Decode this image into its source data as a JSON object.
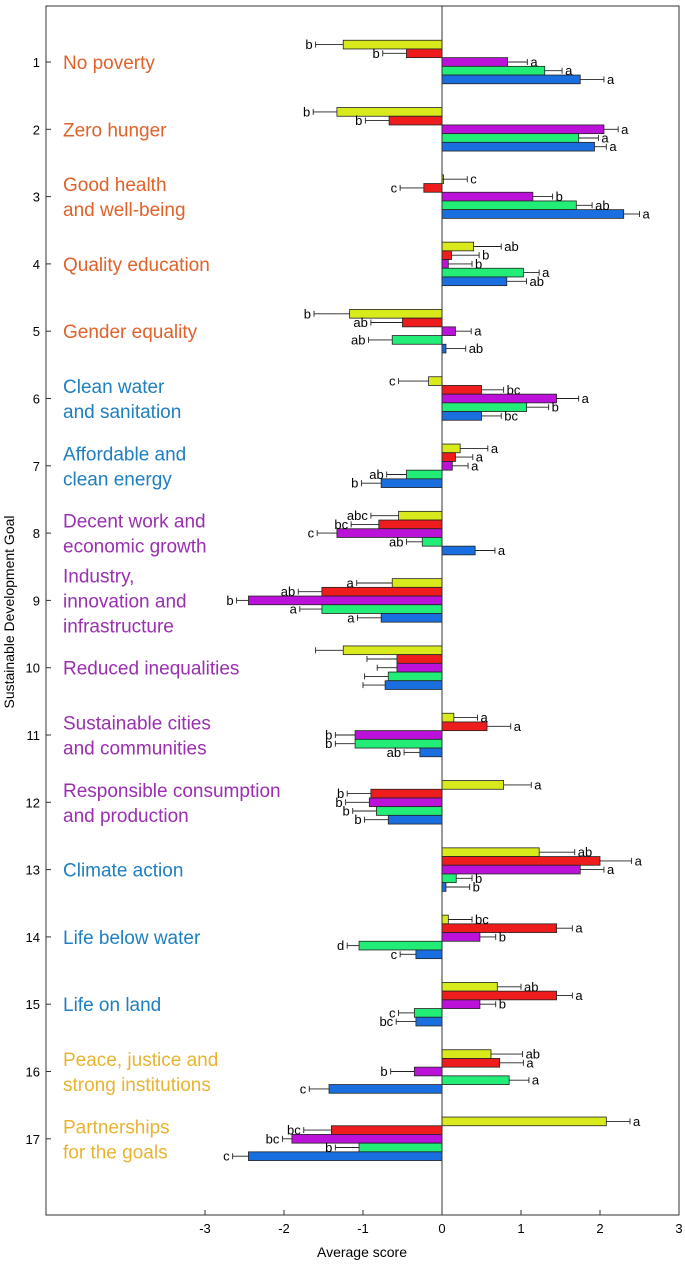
{
  "chart_data": {
    "type": "bar",
    "orientation": "horizontal",
    "xlabel": "Average score",
    "ylabel": "Sustainable Development Goal",
    "xlim": [
      -5.1,
      3
    ],
    "xticks": [
      -3,
      -2,
      -1,
      0,
      1,
      2,
      3
    ],
    "ylim": [
      0.25,
      18
    ],
    "grid": false,
    "series_colors": [
      "#d9ea1c",
      "#ee1c1c",
      "#bb11d9",
      "#22ee77",
      "#1a6fe0"
    ],
    "goals": [
      {
        "number": "1",
        "label_lines": [
          "No poverty"
        ],
        "label_color": "#e0622a",
        "bars": [
          {
            "value": -1.25,
            "err": 0.35,
            "sig": "b"
          },
          {
            "value": -0.45,
            "err": 0.3,
            "sig": "b"
          },
          {
            "value": 0.83,
            "err": 0.25,
            "sig": "a"
          },
          {
            "value": 1.3,
            "err": 0.22,
            "sig": "a"
          },
          {
            "value": 1.75,
            "err": 0.3,
            "sig": "a"
          }
        ]
      },
      {
        "number": "2",
        "label_lines": [
          "Zero hunger"
        ],
        "label_color": "#e0622a",
        "bars": [
          {
            "value": -1.33,
            "err": 0.3,
            "sig": "b"
          },
          {
            "value": -0.67,
            "err": 0.3,
            "sig": "b"
          },
          {
            "value": 2.05,
            "err": 0.18,
            "sig": "a"
          },
          {
            "value": 1.73,
            "err": 0.25,
            "sig": "a"
          },
          {
            "value": 1.93,
            "err": 0.15,
            "sig": "a"
          }
        ]
      },
      {
        "number": "3",
        "label_lines": [
          "Good health",
          "and well-being"
        ],
        "label_color": "#e0622a",
        "bars": [
          {
            "value": 0.0,
            "err": 0.32,
            "sig": "c"
          },
          {
            "value": -0.23,
            "err": 0.3,
            "sig": "c"
          },
          {
            "value": 1.15,
            "err": 0.25,
            "sig": "b"
          },
          {
            "value": 1.7,
            "err": 0.2,
            "sig": "ab"
          },
          {
            "value": 2.3,
            "err": 0.2,
            "sig": "a"
          }
        ]
      },
      {
        "number": "4",
        "label_lines": [
          "Quality education"
        ],
        "label_color": "#e0622a",
        "bars": [
          {
            "value": 0.4,
            "err": 0.35,
            "sig": "ab"
          },
          {
            "value": 0.12,
            "err": 0.35,
            "sig": "b"
          },
          {
            "value": 0.08,
            "err": 0.3,
            "sig": "b"
          },
          {
            "value": 1.03,
            "err": 0.2,
            "sig": "a"
          },
          {
            "value": 0.82,
            "err": 0.25,
            "sig": "ab"
          }
        ]
      },
      {
        "number": "5",
        "label_lines": [
          "Gender equality"
        ],
        "label_color": "#e0622a",
        "bars": [
          {
            "value": -1.17,
            "err": 0.45,
            "sig": "b"
          },
          {
            "value": -0.5,
            "err": 0.4,
            "sig": "ab"
          },
          {
            "value": 0.17,
            "err": 0.2,
            "sig": "a"
          },
          {
            "value": -0.63,
            "err": 0.3,
            "sig": "ab"
          },
          {
            "value": 0.05,
            "err": 0.25,
            "sig": "ab"
          }
        ]
      },
      {
        "number": "6",
        "label_lines": [
          "Clean water",
          "and sanitation"
        ],
        "label_color": "#1e7fc0",
        "bars": [
          {
            "value": -0.17,
            "err": 0.38,
            "sig": "c"
          },
          {
            "value": 0.5,
            "err": 0.28,
            "sig": "bc"
          },
          {
            "value": 1.45,
            "err": 0.28,
            "sig": "a"
          },
          {
            "value": 1.07,
            "err": 0.28,
            "sig": "b"
          },
          {
            "value": 0.5,
            "err": 0.25,
            "sig": "bc"
          }
        ]
      },
      {
        "number": "7",
        "label_lines": [
          "Affordable and",
          "clean energy"
        ],
        "label_color": "#1e7fc0",
        "bars": [
          {
            "value": 0.23,
            "err": 0.35,
            "sig": "a"
          },
          {
            "value": 0.17,
            "err": 0.22,
            "sig": "a"
          },
          {
            "value": 0.13,
            "err": 0.2,
            "sig": "a"
          },
          {
            "value": -0.45,
            "err": 0.25,
            "sig": "ab"
          },
          {
            "value": -0.77,
            "err": 0.25,
            "sig": "b"
          }
        ]
      },
      {
        "number": "8",
        "label_lines": [
          "Decent work and",
          "economic growth"
        ],
        "label_color": "#9a2fb0",
        "bars": [
          {
            "value": -0.55,
            "err": 0.35,
            "sig": "abc"
          },
          {
            "value": -0.8,
            "err": 0.35,
            "sig": "bc"
          },
          {
            "value": -1.33,
            "err": 0.25,
            "sig": "c"
          },
          {
            "value": -0.25,
            "err": 0.2,
            "sig": "ab"
          },
          {
            "value": 0.42,
            "err": 0.25,
            "sig": "a"
          }
        ]
      },
      {
        "number": "9",
        "label_lines": [
          "Industry,",
          "innovation and",
          "infrastructure"
        ],
        "label_color": "#9a2fb0",
        "bars": [
          {
            "value": -0.63,
            "err": 0.45,
            "sig": "a"
          },
          {
            "value": -1.52,
            "err": 0.3,
            "sig": "ab"
          },
          {
            "value": -2.45,
            "err": 0.15,
            "sig": "b"
          },
          {
            "value": -1.52,
            "err": 0.28,
            "sig": "a"
          },
          {
            "value": -0.77,
            "err": 0.3,
            "sig": "a"
          }
        ]
      },
      {
        "number": "10",
        "label_lines": [
          "Reduced inequalities"
        ],
        "label_color": "#9a2fb0",
        "bars": [
          {
            "value": -1.25,
            "err": 0.35,
            "sig": ""
          },
          {
            "value": -0.57,
            "err": 0.38,
            "sig": ""
          },
          {
            "value": -0.57,
            "err": 0.25,
            "sig": ""
          },
          {
            "value": -0.68,
            "err": 0.3,
            "sig": ""
          },
          {
            "value": -0.72,
            "err": 0.28,
            "sig": ""
          }
        ]
      },
      {
        "number": "11",
        "label_lines": [
          "Sustainable cities",
          "and communities"
        ],
        "label_color": "#9a2fb0",
        "bars": [
          {
            "value": 0.15,
            "err": 0.3,
            "sig": "a"
          },
          {
            "value": 0.57,
            "err": 0.3,
            "sig": "a"
          },
          {
            "value": -1.1,
            "err": 0.25,
            "sig": "b"
          },
          {
            "value": -1.1,
            "err": 0.25,
            "sig": "b"
          },
          {
            "value": -0.28,
            "err": 0.2,
            "sig": "ab"
          }
        ]
      },
      {
        "number": "12",
        "label_lines": [
          "Responsible consumption",
          "and production"
        ],
        "label_color": "#9a2fb0",
        "bars": [
          {
            "value": 0.78,
            "err": 0.35,
            "sig": "a"
          },
          {
            "value": -0.9,
            "err": 0.3,
            "sig": "b"
          },
          {
            "value": -0.92,
            "err": 0.3,
            "sig": "b"
          },
          {
            "value": -0.83,
            "err": 0.3,
            "sig": "b"
          },
          {
            "value": -0.68,
            "err": 0.3,
            "sig": "b"
          }
        ]
      },
      {
        "number": "13",
        "label_lines": [
          "Climate action"
        ],
        "label_color": "#1e7fc0",
        "bars": [
          {
            "value": 1.23,
            "err": 0.45,
            "sig": "ab"
          },
          {
            "value": 2.0,
            "err": 0.4,
            "sig": "a"
          },
          {
            "value": 1.75,
            "err": 0.3,
            "sig": "a"
          },
          {
            "value": 0.18,
            "err": 0.2,
            "sig": "b"
          },
          {
            "value": 0.05,
            "err": 0.3,
            "sig": "b"
          }
        ]
      },
      {
        "number": "14",
        "label_lines": [
          "Life below water"
        ],
        "label_color": "#1e7fc0",
        "bars": [
          {
            "value": 0.08,
            "err": 0.3,
            "sig": "bc"
          },
          {
            "value": 1.45,
            "err": 0.2,
            "sig": "a"
          },
          {
            "value": 0.48,
            "err": 0.2,
            "sig": "b"
          },
          {
            "value": -1.05,
            "err": 0.15,
            "sig": "d"
          },
          {
            "value": -0.33,
            "err": 0.2,
            "sig": "c"
          }
        ]
      },
      {
        "number": "15",
        "label_lines": [
          "Life on land"
        ],
        "label_color": "#1e7fc0",
        "bars": [
          {
            "value": 0.7,
            "err": 0.3,
            "sig": "ab"
          },
          {
            "value": 1.45,
            "err": 0.2,
            "sig": "a"
          },
          {
            "value": 0.48,
            "err": 0.2,
            "sig": "b"
          },
          {
            "value": -0.35,
            "err": 0.2,
            "sig": "c"
          },
          {
            "value": -0.33,
            "err": 0.25,
            "sig": "bc"
          }
        ]
      },
      {
        "number": "16",
        "label_lines": [
          "Peace, justice and",
          "strong institutions"
        ],
        "label_color": "#e8b430",
        "bars": [
          {
            "value": 0.62,
            "err": 0.4,
            "sig": "ab"
          },
          {
            "value": 0.73,
            "err": 0.3,
            "sig": "a"
          },
          {
            "value": -0.35,
            "err": 0.3,
            "sig": "b"
          },
          {
            "value": 0.85,
            "err": 0.25,
            "sig": "a"
          },
          {
            "value": -1.43,
            "err": 0.25,
            "sig": "c"
          }
        ]
      },
      {
        "number": "17",
        "label_lines": [
          "Partnerships",
          "for the goals"
        ],
        "label_color": "#e8b430",
        "bars": [
          {
            "value": 2.08,
            "err": 0.3,
            "sig": "a"
          },
          {
            "value": -1.4,
            "err": 0.35,
            "sig": "bc"
          },
          {
            "value": -1.9,
            "err": 0.12,
            "sig": "bc"
          },
          {
            "value": -1.05,
            "err": 0.3,
            "sig": "b"
          },
          {
            "value": -2.45,
            "err": 0.2,
            "sig": "c"
          }
        ]
      }
    ]
  }
}
